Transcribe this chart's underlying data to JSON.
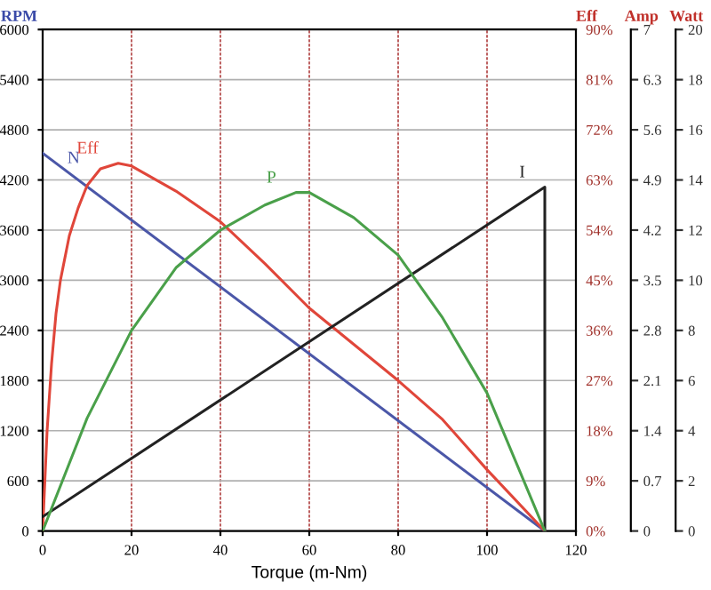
{
  "chart_data": [
    {
      "type": "line",
      "xlabel": "Torque (m-Nm)",
      "ylabel": "RPM",
      "y2label": "Eff",
      "y3label": "Amp",
      "xlim": [
        0,
        120
      ],
      "xticks": [
        0,
        20,
        40,
        60,
        80,
        100,
        120
      ],
      "ylim": [
        0,
        6000
      ],
      "yticks": [
        0,
        600,
        1200,
        1800,
        2400,
        3000,
        3600,
        4200,
        4800,
        5400,
        6000
      ],
      "y2lim": [
        0,
        90
      ],
      "y2ticks": [
        {
          "value": 0,
          "label": "0%"
        },
        {
          "value": 9,
          "label": "9%"
        },
        {
          "value": 18,
          "label": "18%"
        },
        {
          "value": 27,
          "label": "27%"
        },
        {
          "value": 36,
          "label": "36%"
        },
        {
          "value": 45,
          "label": "45%"
        },
        {
          "value": 54,
          "label": "54%"
        },
        {
          "value": 63,
          "label": "63%"
        },
        {
          "value": 72,
          "label": "72%"
        },
        {
          "value": 81,
          "label": "81%"
        },
        {
          "value": 90,
          "label": "90%"
        }
      ],
      "y3lim": [
        0,
        7
      ],
      "y3ticks": [
        0,
        0.7,
        1.4,
        2.1,
        2.8,
        3.5,
        4.2,
        4.9,
        5.6,
        6.3,
        7
      ],
      "grid": true,
      "marker": "none",
      "line_style": "solid",
      "series": [
        {
          "name": "N",
          "color": "#4b57a8",
          "x": [
            0,
            113
          ],
          "values": [
            4520,
            0
          ]
        },
        {
          "name": "Eff",
          "color": "#e0463a",
          "axis": "y2",
          "x": [
            0,
            1,
            2,
            3,
            4,
            6,
            8,
            10,
            13,
            17,
            20,
            30,
            40,
            50,
            60,
            70,
            80,
            90,
            100,
            113
          ],
          "values": [
            0,
            18,
            30,
            39,
            45,
            53,
            58,
            62,
            65,
            66,
            65.5,
            61,
            55.5,
            48,
            40,
            33.5,
            27,
            20,
            11,
            0
          ]
        },
        {
          "name": "I",
          "color": "#222222",
          "axis": "y3",
          "x": [
            0,
            113,
            113
          ],
          "values": [
            0.2,
            4.8,
            0
          ]
        }
      ]
    },
    {
      "type": "line",
      "ylabel": "Watt",
      "xlim": [
        0,
        120
      ],
      "ylim": [
        0,
        20
      ],
      "yticks": [
        0,
        2,
        4,
        6,
        8,
        10,
        12,
        14,
        16,
        18,
        20
      ],
      "tick_labels": "y",
      "marker": "none",
      "line_style": "solid",
      "series": [
        {
          "name": "P",
          "color": "#4aa04a",
          "x": [
            0,
            10,
            20,
            30,
            40,
            50,
            57,
            60,
            70,
            80,
            90,
            100,
            113
          ],
          "values": [
            0,
            4.5,
            8,
            10.5,
            12,
            13,
            13.5,
            13.5,
            12.5,
            11,
            8.5,
            5.5,
            0
          ]
        }
      ]
    }
  ]
}
